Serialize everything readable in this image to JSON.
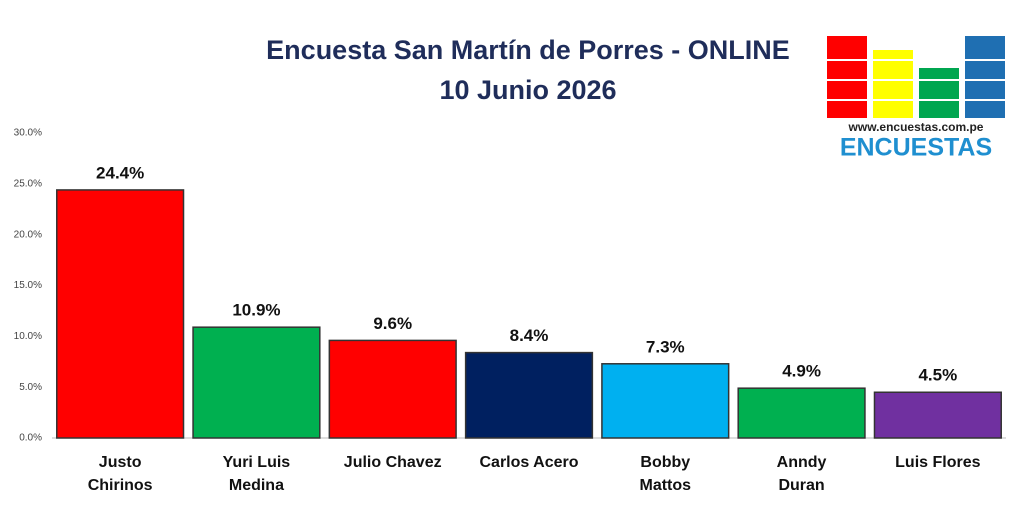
{
  "chart_data": {
    "type": "bar",
    "title": "Encuesta San Martín de Porres - ONLINE",
    "subtitle": "10 Junio 2026",
    "logo_url": "www.encuestas.com.pe",
    "logo_name": "ENCUESTAS",
    "categories": [
      "Justo Chirinos",
      "Yuri Luis Medina",
      "Julio Chavez",
      "Carlos Acero",
      "Bobby Mattos",
      "Anndy Duran",
      "Luis Flores"
    ],
    "values": [
      24.4,
      10.9,
      9.6,
      8.4,
      7.3,
      4.9,
      4.5
    ],
    "value_labels": [
      "24.4%",
      "10.9%",
      "9.6%",
      "8.4%",
      "7.3%",
      "4.9%",
      "4.5%"
    ],
    "colors": [
      "#ff0000",
      "#00b050",
      "#ff0000",
      "#002060",
      "#00b0f0",
      "#00b050",
      "#7030a0"
    ],
    "ylim": [
      0,
      30
    ],
    "yticks": [
      {
        "value": 0,
        "label": "0.0%"
      },
      {
        "value": 5,
        "label": "5.0%"
      },
      {
        "value": 10,
        "label": "10.0%"
      },
      {
        "value": 15,
        "label": "15.0%"
      },
      {
        "value": 20,
        "label": "20.0%"
      },
      {
        "value": 25,
        "label": "25.0%"
      },
      {
        "value": 30,
        "label": "30.0%"
      }
    ],
    "grid": false
  }
}
